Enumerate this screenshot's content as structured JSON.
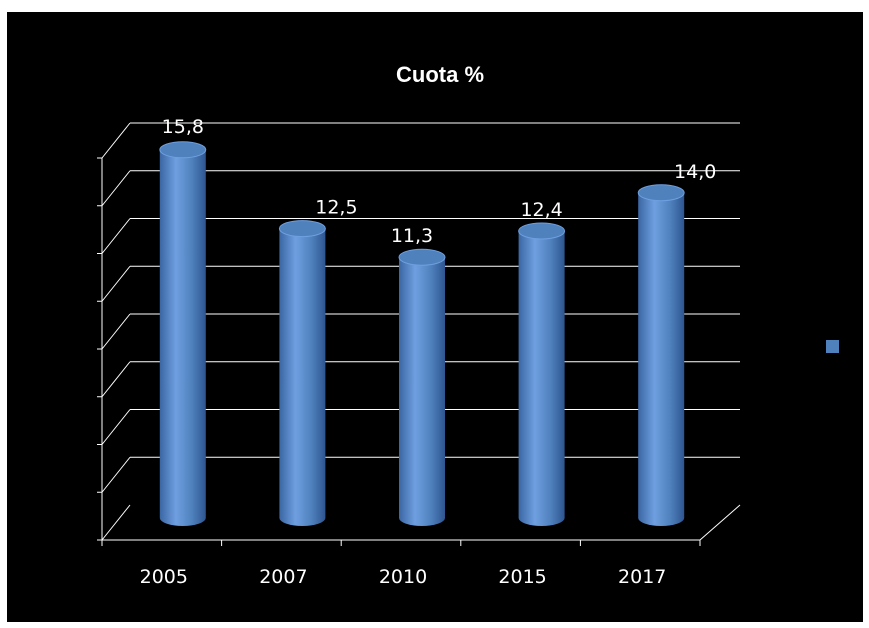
{
  "chart_data": {
    "type": "bar",
    "style": "3d-cylinder",
    "title": "Cuota %",
    "categories": [
      "2005",
      "2007",
      "2010",
      "2015",
      "2017"
    ],
    "values": [
      15.8,
      12.5,
      11.3,
      12.4,
      14.0
    ],
    "data_labels": [
      "15,8",
      "12,5",
      "11,3",
      "12,4",
      "14,0"
    ],
    "series": [
      {
        "values": [
          15.8,
          12.5,
          11.3,
          12.4,
          14.0
        ]
      }
    ],
    "ylim": [
      0,
      16
    ],
    "grid": true,
    "legend": "right",
    "colors": {
      "bar": "#4f81bd",
      "background": "#000000",
      "axis": "#ffffff"
    }
  }
}
